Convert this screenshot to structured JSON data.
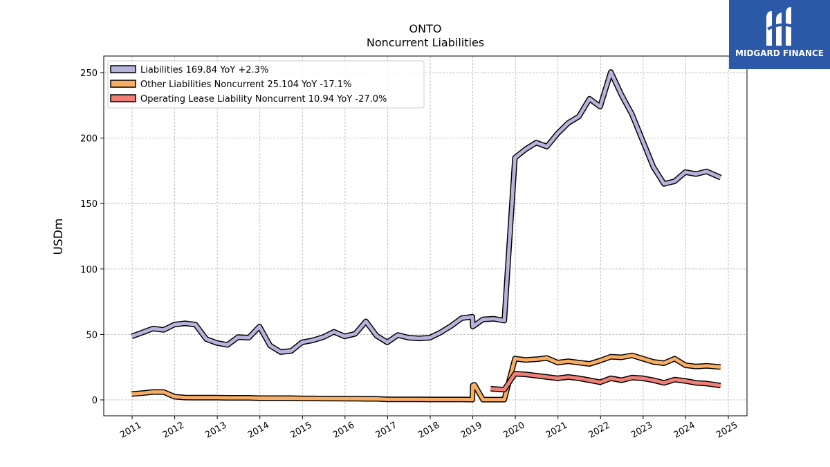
{
  "logo": {
    "text": "MIDGARD FINANCE",
    "background": "#2b59a8"
  },
  "chart_data": {
    "type": "line",
    "title": "ONTO",
    "subtitle": "Noncurrent  Liabilities",
    "ylabel": "USDm",
    "xlabel": "",
    "ylim": [
      -12,
      262
    ],
    "xlim": [
      2010.6,
      2025.05
    ],
    "yticks": [
      0,
      50,
      100,
      150,
      200,
      250
    ],
    "xticks": [
      2011,
      2012,
      2013,
      2014,
      2015,
      2016,
      2017,
      2018,
      2019,
      2020,
      2021,
      2022,
      2023,
      2024,
      2025
    ],
    "grid": true,
    "legend_position": "top-left",
    "series": [
      {
        "name": "Liabilities",
        "legend": "Liabilities  169.84 YoY +2.3%",
        "color": "#b7b4dc",
        "points": [
          [
            2010.99,
            48.5
          ],
          [
            2011.24,
            51.5
          ],
          [
            2011.49,
            54.5
          ],
          [
            2011.74,
            53.5
          ],
          [
            2011.99,
            57.5
          ],
          [
            2012.24,
            58.5
          ],
          [
            2012.49,
            57.5
          ],
          [
            2012.74,
            46.5
          ],
          [
            2012.99,
            43.5
          ],
          [
            2013.24,
            42
          ],
          [
            2013.49,
            48
          ],
          [
            2013.74,
            47.5
          ],
          [
            2013.99,
            56
          ],
          [
            2014.24,
            41.5
          ],
          [
            2014.49,
            36.5
          ],
          [
            2014.74,
            37.5
          ],
          [
            2014.99,
            44
          ],
          [
            2015.24,
            45.5
          ],
          [
            2015.49,
            48
          ],
          [
            2015.74,
            52
          ],
          [
            2015.99,
            48.5
          ],
          [
            2016.24,
            50.5
          ],
          [
            2016.49,
            60
          ],
          [
            2016.74,
            49
          ],
          [
            2016.99,
            44
          ],
          [
            2017.24,
            49.5
          ],
          [
            2017.49,
            47.5
          ],
          [
            2017.74,
            47
          ],
          [
            2017.99,
            47.5
          ],
          [
            2018.24,
            51.5
          ],
          [
            2018.49,
            56.5
          ],
          [
            2018.74,
            62.5
          ],
          [
            2018.99,
            63.5
          ],
          [
            2019.0,
            56
          ],
          [
            2019.24,
            61.5
          ],
          [
            2019.49,
            62
          ],
          [
            2019.74,
            60.5
          ],
          [
            2019.99,
            185
          ],
          [
            2020.24,
            191.5
          ],
          [
            2020.49,
            196.5
          ],
          [
            2020.74,
            193.5
          ],
          [
            2020.99,
            203.5
          ],
          [
            2021.24,
            211.5
          ],
          [
            2021.49,
            216.5
          ],
          [
            2021.74,
            230
          ],
          [
            2021.99,
            224
          ],
          [
            2022.24,
            250.5
          ],
          [
            2022.49,
            233
          ],
          [
            2022.74,
            218
          ],
          [
            2022.99,
            198
          ],
          [
            2023.24,
            178
          ],
          [
            2023.49,
            165
          ],
          [
            2023.74,
            167
          ],
          [
            2023.99,
            174
          ],
          [
            2024.24,
            172.5
          ],
          [
            2024.49,
            174.5
          ],
          [
            2024.82,
            169.84
          ]
        ]
      },
      {
        "name": "Other Liabilities Noncurrent",
        "legend": "Other Liabilities Noncurrent  25.104 YoY -17.1%",
        "color": "#f9ad62",
        "points": [
          [
            2010.99,
            4.5
          ],
          [
            2011.24,
            5.2
          ],
          [
            2011.49,
            6
          ],
          [
            2011.74,
            6
          ],
          [
            2011.99,
            2.5
          ],
          [
            2012.24,
            1.8
          ],
          [
            2012.49,
            1.7
          ],
          [
            2012.74,
            1.7
          ],
          [
            2012.99,
            1.7
          ],
          [
            2013.24,
            1.6
          ],
          [
            2013.49,
            1.6
          ],
          [
            2013.74,
            1.6
          ],
          [
            2013.99,
            1.3
          ],
          [
            2014.24,
            1.3
          ],
          [
            2014.49,
            1.3
          ],
          [
            2014.74,
            1.3
          ],
          [
            2014.99,
            1.1
          ],
          [
            2015.24,
            1.1
          ],
          [
            2015.49,
            1.0
          ],
          [
            2015.74,
            1.0
          ],
          [
            2015.99,
            0.9
          ],
          [
            2016.24,
            0.9
          ],
          [
            2016.49,
            0.8
          ],
          [
            2016.74,
            0.8
          ],
          [
            2016.99,
            0.4
          ],
          [
            2017.24,
            0.4
          ],
          [
            2017.49,
            0.4
          ],
          [
            2017.74,
            0.4
          ],
          [
            2017.99,
            0.3
          ],
          [
            2018.24,
            0.3
          ],
          [
            2018.49,
            0.3
          ],
          [
            2018.74,
            0.3
          ],
          [
            2018.99,
            0.2
          ],
          [
            2019.0,
            11
          ],
          [
            2019.04,
            11.5
          ],
          [
            2019.24,
            0.2
          ],
          [
            2019.49,
            0.2
          ],
          [
            2019.74,
            0.2
          ],
          [
            2019.99,
            31.5
          ],
          [
            2020.24,
            30.5
          ],
          [
            2020.49,
            31
          ],
          [
            2020.74,
            32
          ],
          [
            2020.99,
            28.5
          ],
          [
            2021.24,
            29.5
          ],
          [
            2021.49,
            28.5
          ],
          [
            2021.74,
            27.5
          ],
          [
            2021.99,
            30
          ],
          [
            2022.24,
            33
          ],
          [
            2022.49,
            32.5
          ],
          [
            2022.74,
            34
          ],
          [
            2022.99,
            31.5
          ],
          [
            2023.24,
            29
          ],
          [
            2023.49,
            28
          ],
          [
            2023.74,
            31.5
          ],
          [
            2023.99,
            26.5
          ],
          [
            2024.24,
            25.5
          ],
          [
            2024.49,
            26
          ],
          [
            2024.82,
            25.104
          ]
        ]
      },
      {
        "name": "Operating Lease Liability Noncurrent",
        "legend": "Operating Lease Liability Noncurrent  10.94 YoY -27.0%",
        "color": "#f07f76",
        "points": [
          [
            2019.42,
            8.5
          ],
          [
            2019.74,
            7.8
          ],
          [
            2019.99,
            20
          ],
          [
            2020.24,
            19.5
          ],
          [
            2020.49,
            18.5
          ],
          [
            2020.74,
            17.5
          ],
          [
            2020.99,
            16.5
          ],
          [
            2021.24,
            17.5
          ],
          [
            2021.49,
            16.5
          ],
          [
            2021.74,
            15
          ],
          [
            2021.99,
            13.5
          ],
          [
            2022.24,
            16.5
          ],
          [
            2022.49,
            15
          ],
          [
            2022.74,
            17
          ],
          [
            2022.99,
            16.5
          ],
          [
            2023.24,
            15
          ],
          [
            2023.49,
            13
          ],
          [
            2023.74,
            15.5
          ],
          [
            2023.99,
            14.5
          ],
          [
            2024.24,
            13
          ],
          [
            2024.49,
            12.5
          ],
          [
            2024.82,
            10.94
          ]
        ]
      }
    ]
  }
}
